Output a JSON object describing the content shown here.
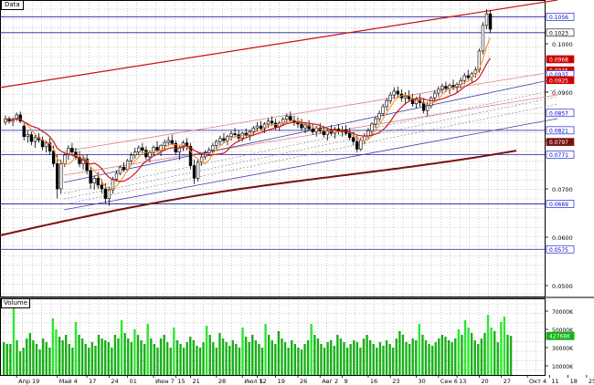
{
  "window": {
    "price_title": "Data",
    "volume_title": "Volume"
  },
  "colors": {
    "background": "#ffffff",
    "grid": "#9a9a9a",
    "candle": "#000000",
    "hline": "#1a1aa0",
    "channel_outer": "#cc1010",
    "channel_inner": "#e08080",
    "channel_blue": "#4040b0",
    "channel_dotted": "#909090",
    "ma_fast": "#ff8c1a",
    "ma_mid": "#d01818",
    "ma_slow": "#7a1010",
    "volume_bar": "#16b016",
    "volume_bar_hi": "#2ee62e",
    "label_blue": "#0000cc",
    "label_red": "#cc0000",
    "label_dark": "#7a1010",
    "label_green": "#16b016"
  },
  "chart_data": [
    {
      "type": "candlestick",
      "title": "Data",
      "ylim": [
        0.84,
        0.198
      ],
      "y_ticks": [
        {
          "value": "0.1000",
          "pos": 0.1
        },
        {
          "value": "0.0900",
          "pos": 0.09
        },
        {
          "value": "0.0800",
          "pos": 0.08
        },
        {
          "value": "0.0700",
          "pos": 0.07
        },
        {
          "value": "0.0600",
          "pos": 0.06
        },
        {
          "value": "0.0500",
          "pos": 0.05
        }
      ],
      "price_labels": [
        {
          "text": "0.1056",
          "value": 0.1056,
          "style": "blue"
        },
        {
          "text": "0.1023",
          "value": 0.1023,
          "style": "current"
        },
        {
          "text": "0.0968",
          "value": 0.0968,
          "style": "red"
        },
        {
          "text": "0.0945",
          "value": 0.0945,
          "style": "red"
        },
        {
          "text": "0.0937",
          "value": 0.0937,
          "style": "blue"
        },
        {
          "text": "0.0925",
          "value": 0.0925,
          "style": "red"
        },
        {
          "text": "0.0857",
          "value": 0.0857,
          "style": "blue"
        },
        {
          "text": "0.0821",
          "value": 0.0821,
          "style": "blue"
        },
        {
          "text": "0.0797",
          "value": 0.0797,
          "style": "dark"
        },
        {
          "text": "0.0771",
          "value": 0.0771,
          "style": "blue"
        },
        {
          "text": "0.0669",
          "value": 0.0669,
          "style": "blue"
        },
        {
          "text": "0.0575",
          "value": 0.0575,
          "style": "blue"
        }
      ],
      "horizontal_lines": [
        0.1056,
        0.1023,
        0.0821,
        0.0771,
        0.0669,
        0.0575
      ],
      "x_labels": [
        {
          "text": "Апр 19",
          "index": 3
        },
        {
          "text": "Май 4",
          "index": 14
        },
        {
          "text": "17",
          "index": 22
        },
        {
          "text": "24",
          "index": 28
        },
        {
          "text": "01",
          "index": 33
        },
        {
          "text": "Июн 7",
          "index": 40
        },
        {
          "text": "15",
          "index": 46
        },
        {
          "text": "21",
          "index": 50
        },
        {
          "text": "28",
          "index": 57
        },
        {
          "text": "Июл 5",
          "index": 64
        },
        {
          "text": "12",
          "index": 68
        },
        {
          "text": "19",
          "index": 73
        },
        {
          "text": "26",
          "index": 79
        },
        {
          "text": "Авг 2",
          "index": 85
        },
        {
          "text": "9",
          "index": 91
        },
        {
          "text": "16",
          "index": 98
        },
        {
          "text": "23",
          "index": 104
        },
        {
          "text": "30",
          "index": 111
        },
        {
          "text": "Сен 6",
          "index": 117
        },
        {
          "text": "13",
          "index": 122
        },
        {
          "text": "20",
          "index": 128
        },
        {
          "text": "27",
          "index": 134
        },
        {
          "text": "Окт 4",
          "index": 141
        },
        {
          "text": "11",
          "index": 147
        },
        {
          "text": "18",
          "index": 152
        },
        {
          "text": "25",
          "index": 157
        }
      ],
      "candles": [
        [
          0.0838,
          0.0852,
          0.0832,
          0.0845
        ],
        [
          0.0845,
          0.085,
          0.0835,
          0.084
        ],
        [
          0.084,
          0.0848,
          0.083,
          0.0844
        ],
        [
          0.0844,
          0.0858,
          0.084,
          0.0853
        ],
        [
          0.0853,
          0.086,
          0.0836,
          0.084
        ],
        [
          0.083,
          0.0835,
          0.08,
          0.0808
        ],
        [
          0.0808,
          0.082,
          0.0795,
          0.0812
        ],
        [
          0.0812,
          0.0818,
          0.079,
          0.0798
        ],
        [
          0.0798,
          0.0812,
          0.0785,
          0.0806
        ],
        [
          0.0806,
          0.0815,
          0.0795,
          0.0801
        ],
        [
          0.0801,
          0.0808,
          0.078,
          0.0787
        ],
        [
          0.0787,
          0.08,
          0.0775,
          0.0795
        ],
        [
          0.0795,
          0.0805,
          0.077,
          0.0778
        ],
        [
          0.0778,
          0.079,
          0.0745,
          0.0752
        ],
        [
          0.0752,
          0.077,
          0.068,
          0.07
        ],
        [
          0.07,
          0.076,
          0.069,
          0.0752
        ],
        [
          0.0752,
          0.0775,
          0.0745,
          0.077
        ],
        [
          0.077,
          0.079,
          0.076,
          0.0784
        ],
        [
          0.0784,
          0.0795,
          0.077,
          0.0776
        ],
        [
          0.0776,
          0.0785,
          0.076,
          0.0765
        ],
        [
          0.0765,
          0.0778,
          0.0745,
          0.0752
        ],
        [
          0.0752,
          0.077,
          0.074,
          0.0762
        ],
        [
          0.0762,
          0.0772,
          0.073,
          0.0738
        ],
        [
          0.0738,
          0.0745,
          0.07,
          0.0712
        ],
        [
          0.0712,
          0.0728,
          0.0698,
          0.0722
        ],
        [
          0.0722,
          0.0735,
          0.07,
          0.0708
        ],
        [
          0.0708,
          0.072,
          0.069,
          0.07
        ],
        [
          0.07,
          0.0712,
          0.067,
          0.068
        ],
        [
          0.068,
          0.0705,
          0.0665,
          0.0698
        ],
        [
          0.0698,
          0.0725,
          0.069,
          0.072
        ],
        [
          0.072,
          0.0738,
          0.0715,
          0.0732
        ],
        [
          0.0732,
          0.0748,
          0.0728,
          0.0745
        ],
        [
          0.0745,
          0.0755,
          0.0735,
          0.074
        ],
        [
          0.074,
          0.0762,
          0.0736,
          0.0758
        ],
        [
          0.0758,
          0.0775,
          0.0752,
          0.077
        ],
        [
          0.077,
          0.0785,
          0.0762,
          0.0776
        ],
        [
          0.0776,
          0.079,
          0.077,
          0.0785
        ],
        [
          0.0785,
          0.0795,
          0.0772,
          0.078
        ],
        [
          0.078,
          0.0788,
          0.076,
          0.0766
        ],
        [
          0.0766,
          0.078,
          0.0755,
          0.0775
        ],
        [
          0.0775,
          0.079,
          0.077,
          0.0786
        ],
        [
          0.0786,
          0.0798,
          0.0775,
          0.078
        ],
        [
          0.078,
          0.0792,
          0.0768,
          0.079
        ],
        [
          0.079,
          0.0802,
          0.078,
          0.0796
        ],
        [
          0.0796,
          0.0808,
          0.0788,
          0.08
        ],
        [
          0.08,
          0.0812,
          0.079,
          0.0794
        ],
        [
          0.0794,
          0.08,
          0.077,
          0.0776
        ],
        [
          0.0776,
          0.079,
          0.076,
          0.0785
        ],
        [
          0.0785,
          0.08,
          0.0778,
          0.0795
        ],
        [
          0.0795,
          0.0805,
          0.078,
          0.0788
        ],
        [
          0.0788,
          0.0795,
          0.074,
          0.0748
        ],
        [
          0.0748,
          0.076,
          0.071,
          0.0722
        ],
        [
          0.0722,
          0.076,
          0.0715,
          0.0755
        ],
        [
          0.0755,
          0.0772,
          0.0748,
          0.0766
        ],
        [
          0.0766,
          0.078,
          0.076,
          0.0774
        ],
        [
          0.0774,
          0.0786,
          0.0768,
          0.078
        ],
        [
          0.078,
          0.0795,
          0.0772,
          0.079
        ],
        [
          0.079,
          0.0802,
          0.0782,
          0.0798
        ],
        [
          0.0798,
          0.081,
          0.079,
          0.0804
        ],
        [
          0.0804,
          0.0815,
          0.0795,
          0.08
        ],
        [
          0.08,
          0.0812,
          0.079,
          0.0808
        ],
        [
          0.0808,
          0.082,
          0.08,
          0.0814
        ],
        [
          0.0814,
          0.0826,
          0.0806,
          0.0812
        ],
        [
          0.0812,
          0.0822,
          0.0798,
          0.0805
        ],
        [
          0.0805,
          0.0818,
          0.0798,
          0.0815
        ],
        [
          0.0815,
          0.0825,
          0.0805,
          0.081
        ],
        [
          0.081,
          0.0822,
          0.08,
          0.0818
        ],
        [
          0.0818,
          0.083,
          0.081,
          0.0826
        ],
        [
          0.0826,
          0.0838,
          0.0818,
          0.083
        ],
        [
          0.083,
          0.084,
          0.082,
          0.0825
        ],
        [
          0.0825,
          0.0838,
          0.0815,
          0.0834
        ],
        [
          0.0834,
          0.0846,
          0.0826,
          0.084
        ],
        [
          0.084,
          0.085,
          0.083,
          0.0836
        ],
        [
          0.0836,
          0.0845,
          0.0822,
          0.0828
        ],
        [
          0.0828,
          0.084,
          0.082,
          0.0836
        ],
        [
          0.0836,
          0.0848,
          0.083,
          0.0844
        ],
        [
          0.0844,
          0.0856,
          0.0836,
          0.085
        ],
        [
          0.085,
          0.086,
          0.0838,
          0.0842
        ],
        [
          0.0842,
          0.0852,
          0.083,
          0.0838
        ],
        [
          0.0838,
          0.0848,
          0.0826,
          0.0834
        ],
        [
          0.0834,
          0.0845,
          0.082,
          0.0826
        ],
        [
          0.0826,
          0.0838,
          0.0815,
          0.0832
        ],
        [
          0.0832,
          0.0842,
          0.082,
          0.0824
        ],
        [
          0.0824,
          0.0834,
          0.0812,
          0.0818
        ],
        [
          0.0818,
          0.083,
          0.0808,
          0.0826
        ],
        [
          0.0826,
          0.0836,
          0.0814,
          0.082
        ],
        [
          0.082,
          0.083,
          0.0806,
          0.0812
        ],
        [
          0.0812,
          0.0825,
          0.08,
          0.082
        ],
        [
          0.082,
          0.0832,
          0.081,
          0.0815
        ],
        [
          0.0815,
          0.0828,
          0.0804,
          0.0824
        ],
        [
          0.0824,
          0.0834,
          0.0812,
          0.0818
        ],
        [
          0.0818,
          0.083,
          0.0808,
          0.0822
        ],
        [
          0.0822,
          0.0832,
          0.081,
          0.0815
        ],
        [
          0.0815,
          0.0826,
          0.08,
          0.0806
        ],
        [
          0.0806,
          0.0818,
          0.079,
          0.0798
        ],
        [
          0.0798,
          0.0812,
          0.0775,
          0.0782
        ],
        [
          0.0782,
          0.0806,
          0.0778,
          0.08
        ],
        [
          0.08,
          0.0815,
          0.0792,
          0.081
        ],
        [
          0.081,
          0.0826,
          0.0802,
          0.082
        ],
        [
          0.082,
          0.0838,
          0.0812,
          0.0834
        ],
        [
          0.0834,
          0.085,
          0.0826,
          0.0845
        ],
        [
          0.0845,
          0.0862,
          0.0838,
          0.0856
        ],
        [
          0.0856,
          0.0876,
          0.085,
          0.087
        ],
        [
          0.087,
          0.0888,
          0.0862,
          0.0882
        ],
        [
          0.0882,
          0.09,
          0.0876,
          0.0894
        ],
        [
          0.0894,
          0.091,
          0.0886,
          0.0902
        ],
        [
          0.0902,
          0.0912,
          0.0888,
          0.0896
        ],
        [
          0.0896,
          0.0906,
          0.088,
          0.0888
        ],
        [
          0.0888,
          0.09,
          0.0874,
          0.0892
        ],
        [
          0.0892,
          0.0904,
          0.088,
          0.0886
        ],
        [
          0.0886,
          0.0896,
          0.087,
          0.0876
        ],
        [
          0.0876,
          0.089,
          0.0866,
          0.0884
        ],
        [
          0.0884,
          0.0896,
          0.087,
          0.0878
        ],
        [
          0.0878,
          0.0888,
          0.0856,
          0.0862
        ],
        [
          0.0862,
          0.088,
          0.085,
          0.0872
        ],
        [
          0.0872,
          0.0892,
          0.0866,
          0.0888
        ],
        [
          0.0888,
          0.0904,
          0.088,
          0.0898
        ],
        [
          0.0898,
          0.0912,
          0.089,
          0.0906
        ],
        [
          0.0906,
          0.0918,
          0.0898,
          0.0912
        ],
        [
          0.0912,
          0.0922,
          0.09,
          0.0908
        ],
        [
          0.0908,
          0.0918,
          0.0896,
          0.0914
        ],
        [
          0.0914,
          0.0926,
          0.0904,
          0.091
        ],
        [
          0.091,
          0.092,
          0.0898,
          0.0916
        ],
        [
          0.0916,
          0.093,
          0.0908,
          0.0924
        ],
        [
          0.0924,
          0.094,
          0.0916,
          0.0934
        ],
        [
          0.0934,
          0.0946,
          0.0925,
          0.093
        ],
        [
          0.093,
          0.0942,
          0.092,
          0.0938
        ],
        [
          0.0938,
          0.0952,
          0.093,
          0.0946
        ],
        [
          0.0946,
          0.099,
          0.094,
          0.0985
        ],
        [
          0.0985,
          0.1045,
          0.0978,
          0.1038
        ],
        [
          0.1038,
          0.1072,
          0.103,
          0.1062
        ],
        [
          0.1062,
          0.107,
          0.1022,
          0.103
        ]
      ],
      "candle_x_start_index": 0,
      "candle_x_spacing": 4.05
    },
    {
      "type": "bar",
      "title": "Volume",
      "ylim": [
        0,
        80000
      ],
      "y_ticks": [
        {
          "value": "70000K",
          "pos": 70000
        },
        {
          "value": "50000K",
          "pos": 50000
        },
        {
          "value": "30000K",
          "pos": 30000
        },
        {
          "value": "10000K",
          "pos": 10000
        }
      ],
      "current_label": "42768K",
      "current_value": 42768,
      "values": [
        36000,
        34000,
        34000,
        76000,
        38000,
        26000,
        30000,
        40000,
        46000,
        38000,
        34000,
        28000,
        40000,
        36000,
        30000,
        62000,
        50000,
        42000,
        38000,
        44000,
        34000,
        30000,
        58000,
        44000,
        40000,
        34000,
        30000,
        36000,
        32000,
        44000,
        40000,
        38000,
        36000,
        30000,
        44000,
        40000,
        60000,
        46000,
        40000,
        36000,
        50000,
        44000,
        38000,
        34000,
        56000,
        40000,
        34000,
        30000,
        40000,
        44000,
        36000,
        30000,
        52000,
        38000,
        34000,
        30000,
        36000,
        42000,
        38000,
        32000,
        30000,
        36000,
        54000,
        44000,
        36000,
        30000,
        46000,
        40000,
        36000,
        32000,
        38000,
        34000,
        30000,
        52000,
        42000,
        36000,
        44000,
        38000,
        34000,
        30000,
        56000,
        44000,
        38000,
        34000,
        48000,
        40000,
        36000,
        30000,
        38000,
        34000,
        30000,
        28000,
        34000,
        38000,
        56000,
        44000,
        40000,
        34000,
        30000,
        36000,
        38000,
        32000,
        44000,
        40000,
        36000,
        30000,
        34000,
        38000,
        36000,
        30000,
        40000,
        44000,
        38000,
        34000,
        30000,
        36000,
        32000,
        38000,
        34000,
        30000,
        40000,
        48000,
        44000,
        36000,
        34000,
        40000,
        38000,
        56000,
        44000,
        38000,
        34000,
        32000,
        36000,
        40000,
        44000,
        42000,
        38000,
        36000,
        40000,
        50000,
        44000,
        60000,
        52000,
        46000,
        38000,
        34000,
        40000,
        46000,
        66000,
        52000,
        48000,
        36000,
        58000,
        64000,
        44000,
        42768
      ],
      "bar_x_start_index": 0,
      "bar_x_spacing": 3.58
    }
  ]
}
